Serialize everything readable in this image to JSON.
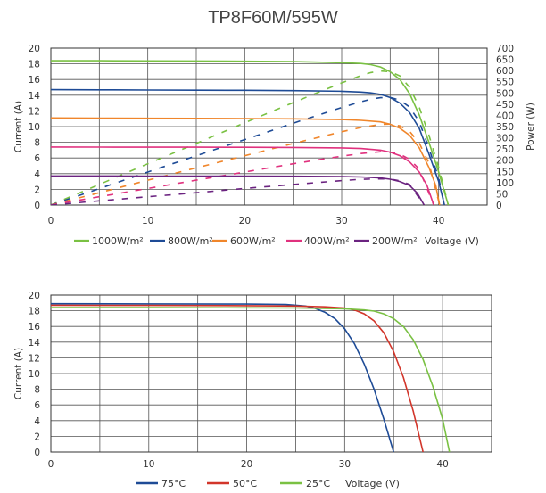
{
  "chart_data": [
    {
      "type": "line",
      "title": "TP8F60M/595W",
      "xlabel": "Voltage (V)",
      "ylabel": "Current (A)",
      "y2label": "Power (W)",
      "xlim": [
        0,
        45
      ],
      "ylim": [
        0,
        20
      ],
      "y2lim": [
        0,
        700
      ],
      "xticks": [
        0,
        10,
        20,
        30,
        40
      ],
      "yticks": [
        0,
        2,
        4,
        6,
        8,
        10,
        12,
        14,
        16,
        18,
        20
      ],
      "y2ticks": [
        0,
        50,
        100,
        150,
        200,
        250,
        300,
        350,
        400,
        450,
        500,
        550,
        600,
        650,
        700
      ],
      "legend_position": "bottom",
      "grid": true,
      "series": [
        {
          "name": "1000W/m²",
          "color": "#7ac143",
          "iv": [
            [
              0,
              18.4
            ],
            [
              5,
              18.4
            ],
            [
              10,
              18.38
            ],
            [
              15,
              18.36
            ],
            [
              20,
              18.33
            ],
            [
              25,
              18.28
            ],
            [
              28,
              18.2
            ],
            [
              30,
              18.15
            ],
            [
              32,
              18.05
            ],
            [
              33,
              17.9
            ],
            [
              34,
              17.6
            ],
            [
              35,
              17
            ],
            [
              36,
              16
            ],
            [
              37,
              14.2
            ],
            [
              38,
              11.5
            ],
            [
              39,
              8
            ],
            [
              40,
              4.2
            ],
            [
              41,
              0
            ]
          ],
          "pv": [
            [
              0,
              0
            ],
            [
              5,
              92
            ],
            [
              10,
              184
            ],
            [
              15,
              275
            ],
            [
              20,
              367
            ],
            [
              25,
              457
            ],
            [
              28,
              510
            ],
            [
              30,
              545
            ],
            [
              32,
              578
            ],
            [
              33,
              591
            ],
            [
              34,
              598
            ],
            [
              35,
              595
            ],
            [
              36,
              576
            ],
            [
              37,
              525
            ],
            [
              38,
              437
            ],
            [
              39,
              312
            ],
            [
              40,
              168
            ],
            [
              41,
              0
            ]
          ]
        },
        {
          "name": "800W/m²",
          "color": "#1e4b96",
          "iv": [
            [
              0,
              14.7
            ],
            [
              5,
              14.68
            ],
            [
              10,
              14.66
            ],
            [
              15,
              14.64
            ],
            [
              20,
              14.62
            ],
            [
              25,
              14.58
            ],
            [
              30,
              14.5
            ],
            [
              32,
              14.4
            ],
            [
              33,
              14.3
            ],
            [
              34,
              14.1
            ],
            [
              35,
              13.7
            ],
            [
              36,
              13
            ],
            [
              37,
              11.8
            ],
            [
              38,
              9.8
            ],
            [
              39,
              6.5
            ],
            [
              40,
              3
            ],
            [
              40.6,
              0
            ]
          ],
          "pv": [
            [
              0,
              0
            ],
            [
              5,
              73
            ],
            [
              10,
              147
            ],
            [
              15,
              220
            ],
            [
              20,
              292
            ],
            [
              25,
              365
            ],
            [
              30,
              435
            ],
            [
              32,
              461
            ],
            [
              33,
              472
            ],
            [
              34,
              479
            ],
            [
              35,
              480
            ],
            [
              36,
              468
            ],
            [
              37,
              437
            ],
            [
              38,
              372
            ],
            [
              39,
              254
            ],
            [
              40,
              120
            ],
            [
              40.6,
              0
            ]
          ]
        },
        {
          "name": "600W/m²",
          "color": "#f0862b",
          "iv": [
            [
              0,
              11.1
            ],
            [
              5,
              11.08
            ],
            [
              10,
              11.06
            ],
            [
              15,
              11.04
            ],
            [
              20,
              11.02
            ],
            [
              25,
              10.99
            ],
            [
              30,
              10.9
            ],
            [
              32,
              10.8
            ],
            [
              34,
              10.6
            ],
            [
              35,
              10.3
            ],
            [
              36,
              9.8
            ],
            [
              37,
              8.9
            ],
            [
              38,
              7.3
            ],
            [
              39,
              4.8
            ],
            [
              39.7,
              2.5
            ],
            [
              40.1,
              0
            ]
          ],
          "pv": [
            [
              0,
              0
            ],
            [
              5,
              55
            ],
            [
              10,
              111
            ],
            [
              15,
              166
            ],
            [
              20,
              220
            ],
            [
              25,
              275
            ],
            [
              30,
              327
            ],
            [
              32,
              346
            ],
            [
              34,
              360
            ],
            [
              35,
              361
            ],
            [
              36,
              353
            ],
            [
              37,
              329
            ],
            [
              38,
              277
            ],
            [
              39,
              187
            ],
            [
              40.1,
              0
            ]
          ]
        },
        {
          "name": "400W/m²",
          "color": "#e0317e",
          "iv": [
            [
              0,
              7.4
            ],
            [
              5,
              7.39
            ],
            [
              10,
              7.38
            ],
            [
              15,
              7.37
            ],
            [
              20,
              7.36
            ],
            [
              25,
              7.34
            ],
            [
              30,
              7.28
            ],
            [
              32,
              7.2
            ],
            [
              34,
              7
            ],
            [
              35,
              6.75
            ],
            [
              36,
              6.3
            ],
            [
              37,
              5.5
            ],
            [
              38,
              4.2
            ],
            [
              38.8,
              2.5
            ],
            [
              39.5,
              0
            ]
          ],
          "pv": [
            [
              0,
              0
            ],
            [
              5,
              37
            ],
            [
              10,
              74
            ],
            [
              15,
              111
            ],
            [
              20,
              147
            ],
            [
              25,
              184
            ],
            [
              30,
              218
            ],
            [
              32,
              230
            ],
            [
              34,
              238
            ],
            [
              35,
              236
            ],
            [
              36,
              227
            ],
            [
              37,
              204
            ],
            [
              38,
              160
            ],
            [
              39.5,
              0
            ]
          ]
        },
        {
          "name": "200W/m²",
          "color": "#6b2380",
          "iv": [
            [
              0,
              3.7
            ],
            [
              5,
              3.7
            ],
            [
              10,
              3.69
            ],
            [
              15,
              3.69
            ],
            [
              20,
              3.68
            ],
            [
              25,
              3.67
            ],
            [
              30,
              3.63
            ],
            [
              32,
              3.58
            ],
            [
              34,
              3.45
            ],
            [
              35,
              3.3
            ],
            [
              36,
              3
            ],
            [
              37,
              2.5
            ],
            [
              37.8,
              1.5
            ],
            [
              38.5,
              0
            ]
          ],
          "pv": [
            [
              0,
              0
            ],
            [
              5,
              18.5
            ],
            [
              10,
              37
            ],
            [
              15,
              55
            ],
            [
              20,
              74
            ],
            [
              25,
              92
            ],
            [
              30,
              109
            ],
            [
              32,
              115
            ],
            [
              34,
              117
            ],
            [
              35,
              116
            ],
            [
              36,
              108
            ],
            [
              37,
              92
            ],
            [
              38.5,
              0
            ]
          ]
        }
      ]
    },
    {
      "type": "line",
      "xlabel": "Voltage (V)",
      "ylabel": "Current (A)",
      "xlim": [
        0,
        45
      ],
      "ylim": [
        0,
        20
      ],
      "xticks": [
        0,
        10,
        20,
        30,
        40
      ],
      "yticks": [
        0,
        2,
        4,
        6,
        8,
        10,
        12,
        14,
        16,
        18,
        20
      ],
      "legend_position": "bottom",
      "grid": true,
      "series": [
        {
          "name": "75°C",
          "color": "#1e4b96",
          "iv": [
            [
              0,
              18.9
            ],
            [
              10,
              18.88
            ],
            [
              20,
              18.85
            ],
            [
              24,
              18.8
            ],
            [
              26,
              18.6
            ],
            [
              27,
              18.3
            ],
            [
              28,
              17.8
            ],
            [
              29,
              17
            ],
            [
              30,
              15.7
            ],
            [
              31,
              13.8
            ],
            [
              32,
              11.2
            ],
            [
              33,
              8
            ],
            [
              34,
              4.2
            ],
            [
              35,
              0
            ]
          ]
        },
        {
          "name": "50°C",
          "color": "#d2352a",
          "iv": [
            [
              0,
              18.7
            ],
            [
              10,
              18.68
            ],
            [
              20,
              18.65
            ],
            [
              25,
              18.6
            ],
            [
              28,
              18.5
            ],
            [
              30,
              18.35
            ],
            [
              31,
              18.1
            ],
            [
              32,
              17.6
            ],
            [
              33,
              16.7
            ],
            [
              34,
              15.2
            ],
            [
              35,
              12.8
            ],
            [
              36,
              9.5
            ],
            [
              37,
              5.2
            ],
            [
              38,
              0
            ]
          ]
        },
        {
          "name": "25°C",
          "color": "#7ac143",
          "iv": [
            [
              0,
              18.4
            ],
            [
              10,
              18.4
            ],
            [
              20,
              18.38
            ],
            [
              25,
              18.35
            ],
            [
              30,
              18.25
            ],
            [
              32,
              18.1
            ],
            [
              33,
              17.95
            ],
            [
              34,
              17.6
            ],
            [
              35,
              17
            ],
            [
              36,
              16
            ],
            [
              37,
              14.3
            ],
            [
              38,
              11.8
            ],
            [
              39,
              8.4
            ],
            [
              40,
              4.2
            ],
            [
              40.7,
              0
            ]
          ]
        }
      ]
    }
  ]
}
